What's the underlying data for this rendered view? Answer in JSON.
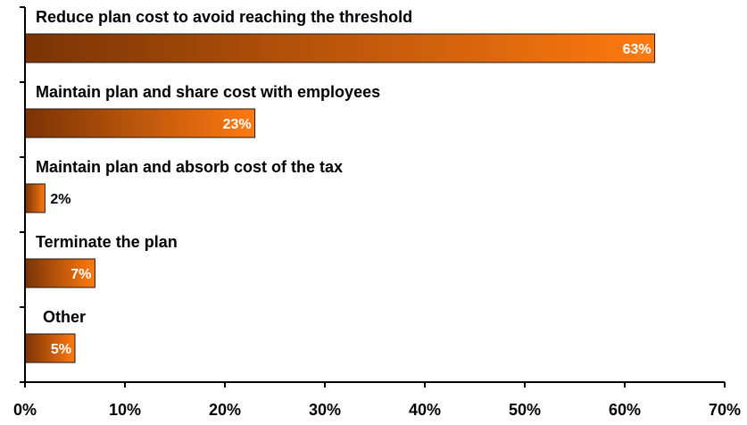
{
  "chart_data": {
    "type": "bar",
    "orientation": "horizontal",
    "categories": [
      "Reduce plan cost to avoid reaching the threshold",
      "Maintain plan and share cost with employees",
      "Maintain plan and absorb cost of the tax",
      "Terminate the plan",
      "Other"
    ],
    "values": [
      63,
      23,
      2,
      7,
      5
    ],
    "value_labels": [
      "63%",
      "23%",
      "2%",
      "7%",
      "5%"
    ],
    "x_ticks": [
      "0%",
      "10%",
      "20%",
      "30%",
      "40%",
      "50%",
      "60%",
      "70%"
    ],
    "xlim": [
      0,
      70
    ],
    "grid": false,
    "legend": "none",
    "colors": {
      "bar_dark": "#7a3306",
      "bar_light": "#ff7a10",
      "bar_edge": "#1a1a1a",
      "axis": "#000000",
      "label_inside": "#ffffff",
      "label_outside": "#000000"
    }
  }
}
